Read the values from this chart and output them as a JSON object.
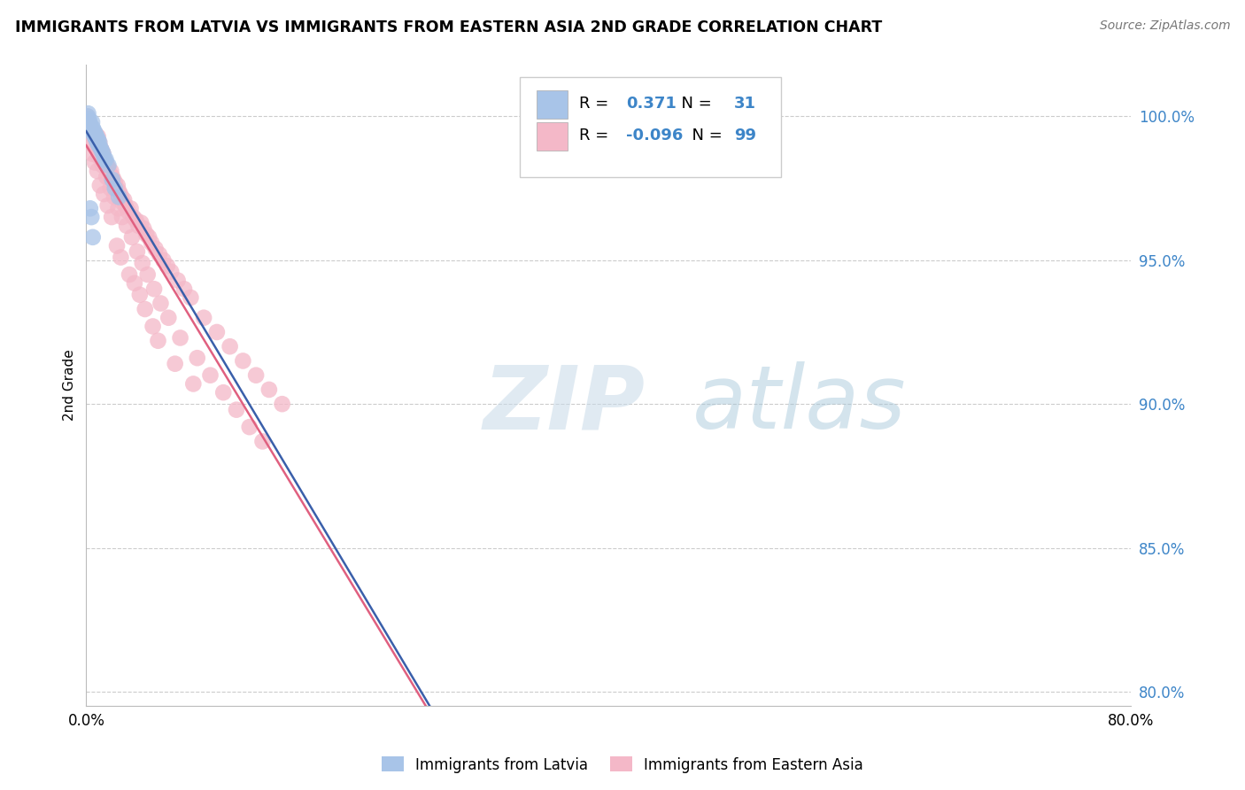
{
  "title": "IMMIGRANTS FROM LATVIA VS IMMIGRANTS FROM EASTERN ASIA 2ND GRADE CORRELATION CHART",
  "source": "Source: ZipAtlas.com",
  "ylabel": "2nd Grade",
  "xlim": [
    0.0,
    80.0
  ],
  "ylim": [
    79.5,
    101.8
  ],
  "yticks": [
    80.0,
    85.0,
    90.0,
    95.0,
    100.0
  ],
  "ytick_labels": [
    "80.0%",
    "85.0%",
    "90.0%",
    "95.0%",
    "100.0%"
  ],
  "legend_r_latvia": "0.371",
  "legend_n_latvia": "31",
  "legend_r_eastern": "-0.096",
  "legend_n_eastern": "99",
  "blue_color": "#a8c4e8",
  "pink_color": "#f4b8c8",
  "blue_line_color": "#3a5faa",
  "pink_line_color": "#e06080",
  "watermark_zip": "ZIP",
  "watermark_atlas": "atlas",
  "latvia_x": [
    0.1,
    0.15,
    0.2,
    0.25,
    0.3,
    0.35,
    0.4,
    0.45,
    0.5,
    0.55,
    0.6,
    0.65,
    0.7,
    0.75,
    0.8,
    0.85,
    0.9,
    0.95,
    1.0,
    1.1,
    1.2,
    1.3,
    1.4,
    1.5,
    1.7,
    2.0,
    2.2,
    2.5,
    0.3,
    0.4,
    0.5
  ],
  "latvia_y": [
    100.0,
    100.1,
    99.9,
    99.8,
    99.7,
    99.6,
    99.5,
    99.8,
    99.6,
    99.4,
    99.5,
    99.3,
    99.4,
    99.2,
    99.3,
    99.1,
    99.2,
    99.0,
    99.1,
    98.9,
    98.8,
    98.7,
    98.5,
    98.5,
    98.3,
    97.8,
    97.5,
    97.2,
    96.8,
    96.5,
    95.8
  ],
  "eastern_x": [
    0.1,
    0.2,
    0.3,
    0.4,
    0.5,
    0.6,
    0.7,
    0.8,
    0.9,
    1.0,
    1.1,
    1.2,
    1.3,
    1.4,
    1.5,
    1.6,
    1.7,
    1.8,
    1.9,
    2.0,
    2.1,
    2.2,
    2.3,
    2.4,
    2.5,
    2.6,
    2.7,
    2.8,
    2.9,
    3.0,
    3.2,
    3.4,
    3.6,
    3.8,
    4.0,
    4.2,
    4.4,
    4.6,
    4.8,
    5.0,
    5.3,
    5.6,
    5.9,
    6.2,
    6.5,
    7.0,
    7.5,
    8.0,
    9.0,
    10.0,
    11.0,
    12.0,
    13.0,
    14.0,
    15.0,
    0.15,
    0.35,
    0.55,
    0.75,
    0.95,
    1.25,
    1.55,
    1.85,
    2.15,
    2.45,
    2.75,
    3.1,
    3.5,
    3.9,
    4.3,
    4.7,
    5.2,
    5.7,
    6.3,
    7.2,
    8.5,
    9.5,
    10.5,
    11.5,
    12.5,
    13.5,
    0.25,
    0.45,
    0.65,
    0.85,
    1.05,
    1.35,
    1.65,
    1.95,
    2.35,
    2.65,
    3.3,
    3.7,
    4.1,
    4.5,
    5.1,
    5.5,
    6.8,
    8.2
  ],
  "eastern_y": [
    100.0,
    99.8,
    99.7,
    99.6,
    99.5,
    99.3,
    99.4,
    99.2,
    99.3,
    99.1,
    98.9,
    98.8,
    98.7,
    98.5,
    98.4,
    98.3,
    98.2,
    98.0,
    98.1,
    97.9,
    97.8,
    97.7,
    97.5,
    97.6,
    97.4,
    97.3,
    97.2,
    97.0,
    97.1,
    96.9,
    96.7,
    96.8,
    96.5,
    96.4,
    96.2,
    96.3,
    96.1,
    95.9,
    95.8,
    95.6,
    95.4,
    95.2,
    95.0,
    94.8,
    94.6,
    94.3,
    94.0,
    93.7,
    93.0,
    92.5,
    92.0,
    91.5,
    91.0,
    90.5,
    90.0,
    99.9,
    99.5,
    99.0,
    98.9,
    98.6,
    98.3,
    97.9,
    97.5,
    97.2,
    96.8,
    96.5,
    96.2,
    95.8,
    95.3,
    94.9,
    94.5,
    94.0,
    93.5,
    93.0,
    92.3,
    91.6,
    91.0,
    90.4,
    89.8,
    89.2,
    88.7,
    99.2,
    98.7,
    98.4,
    98.1,
    97.6,
    97.3,
    96.9,
    96.5,
    95.5,
    95.1,
    94.5,
    94.2,
    93.8,
    93.3,
    92.7,
    92.2,
    91.4,
    90.7
  ]
}
